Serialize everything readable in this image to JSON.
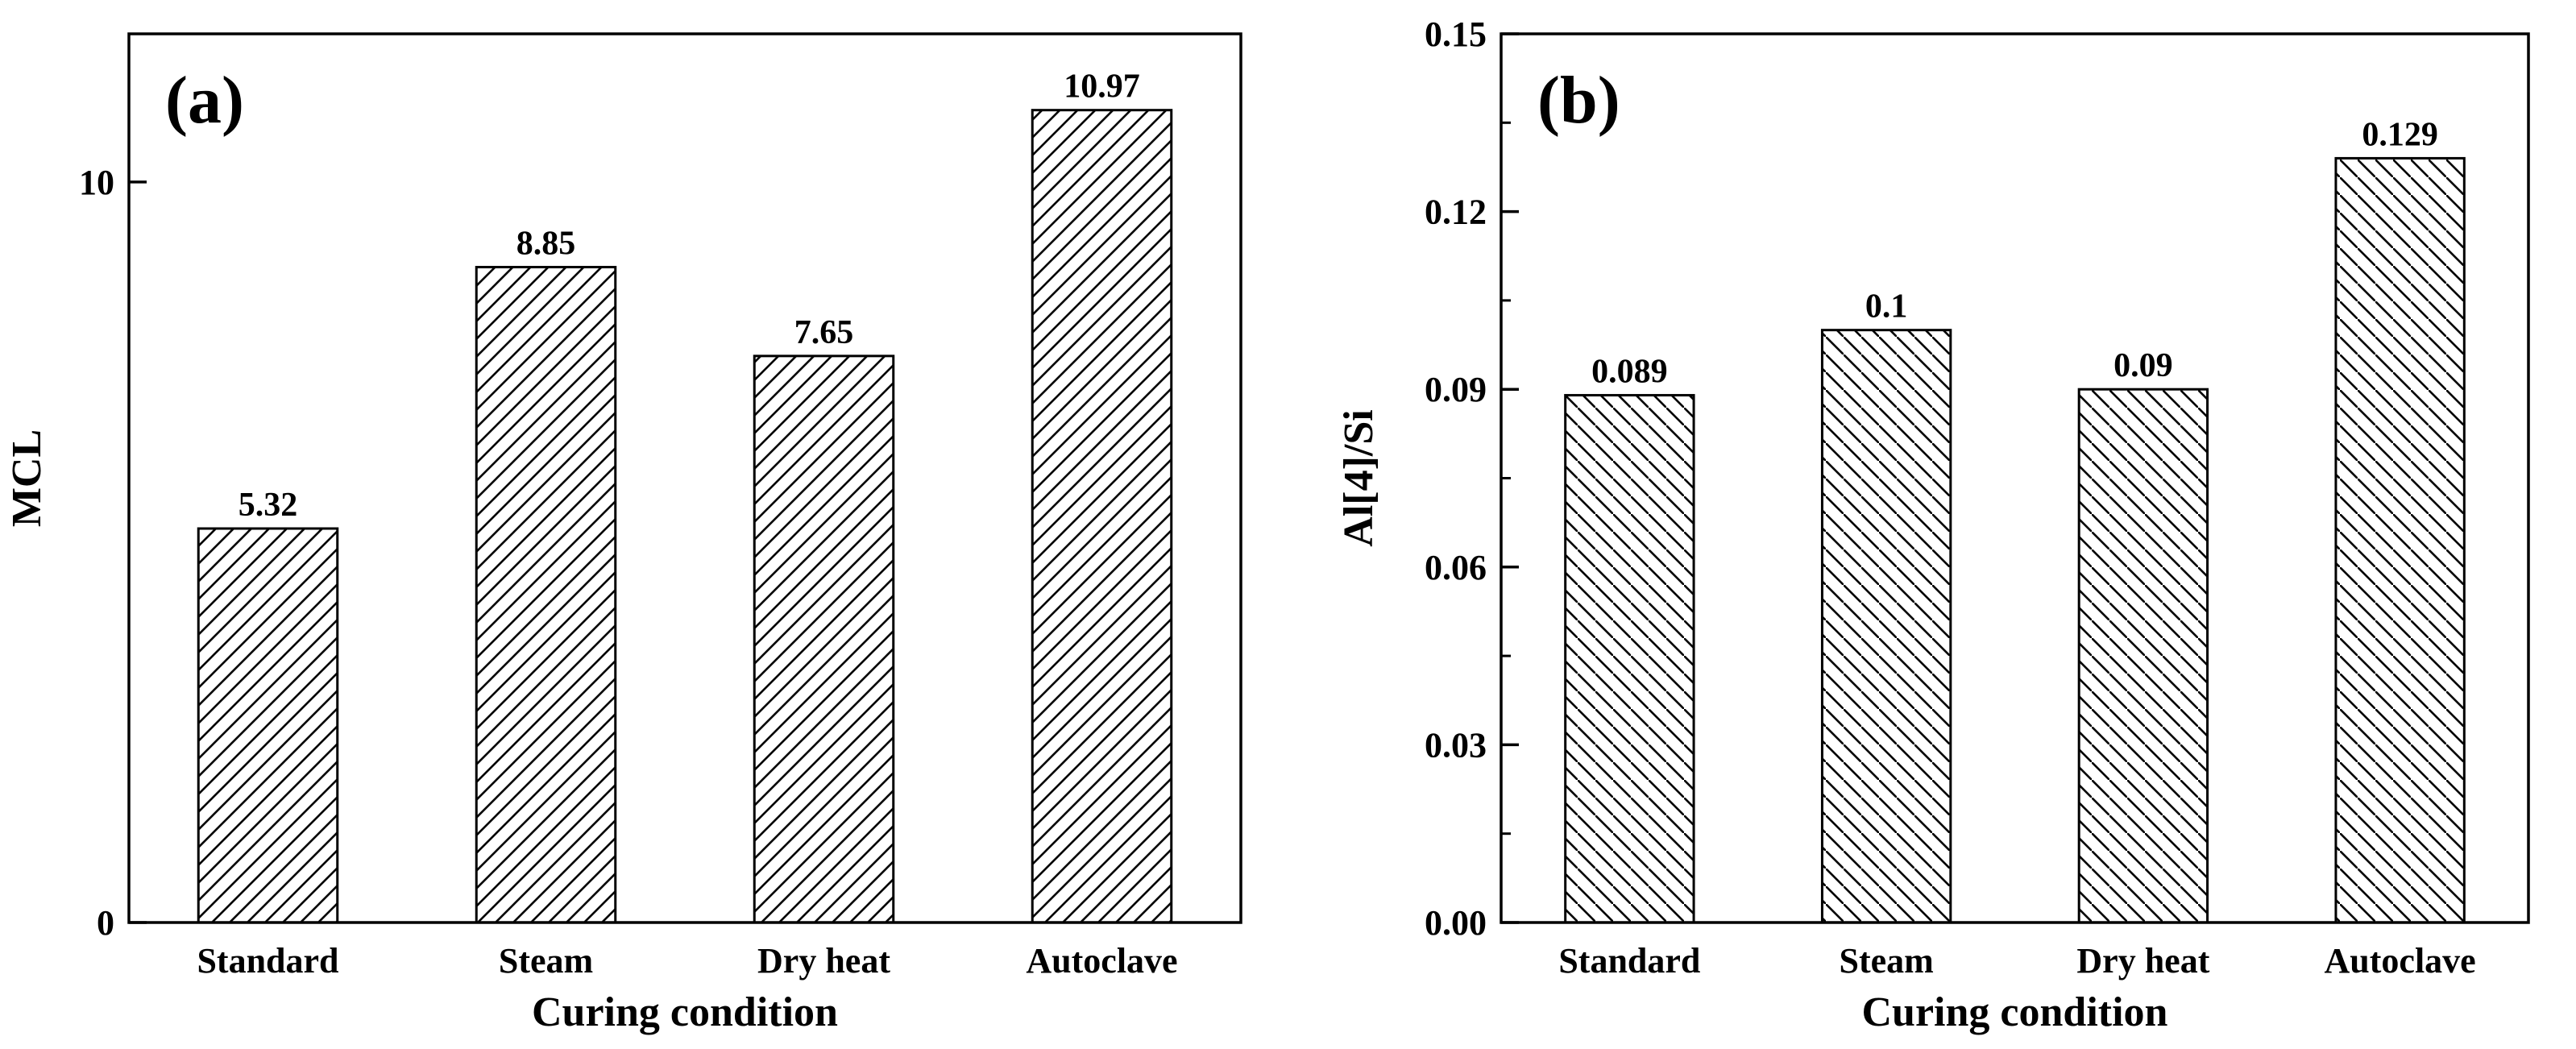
{
  "chart_data": [
    {
      "type": "bar",
      "panel_label": "(a)",
      "categories": [
        "Standard",
        "Steam",
        "Dry heat",
        "Autoclave"
      ],
      "values": [
        5.32,
        8.85,
        7.65,
        10.97
      ],
      "value_labels": [
        "5.32",
        "8.85",
        "7.65",
        "10.97"
      ],
      "xlabel": "Curing condition",
      "ylabel": "MCL",
      "ylim": [
        0,
        12
      ],
      "yticks": [
        0,
        10
      ],
      "ytick_labels": [
        "0",
        "10"
      ],
      "hatch": "forward-diagonal",
      "grid": false
    },
    {
      "type": "bar",
      "panel_label": "(b)",
      "categories": [
        "Standard",
        "Steam",
        "Dry heat",
        "Autoclave"
      ],
      "values": [
        0.089,
        0.1,
        0.09,
        0.129
      ],
      "value_labels": [
        "0.089",
        "0.1",
        "0.09",
        "0.129"
      ],
      "xlabel": "Curing condition",
      "ylabel": "Al[4]/Si",
      "ylim": [
        0,
        0.15
      ],
      "yticks": [
        0,
        0.03,
        0.06,
        0.09,
        0.12,
        0.15
      ],
      "ytick_labels": [
        "0.00",
        "0.03",
        "0.06",
        "0.09",
        "0.12",
        "0.15"
      ],
      "hatch": "backward-diagonal",
      "grid": false
    }
  ],
  "colors": {
    "axis": "#000000",
    "bar_fill": "#ffffff",
    "hatch": "#000000"
  }
}
